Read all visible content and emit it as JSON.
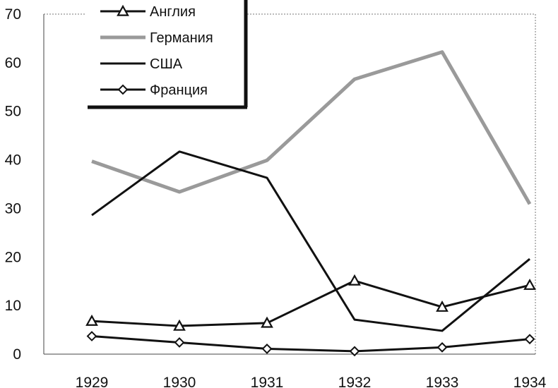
{
  "chart_data": {
    "type": "line",
    "categories": [
      "1929",
      "1930",
      "1931",
      "1932",
      "1933",
      "1934"
    ],
    "ylim": [
      0,
      70
    ],
    "yticks": [
      "0",
      "10",
      "20",
      "30",
      "40",
      "50",
      "60",
      "70"
    ],
    "grid": false,
    "legend_position": "top-left",
    "series": [
      {
        "name": "Англия",
        "values": [
          6.8,
          5.8,
          6.4,
          15.1,
          9.7,
          14.2
        ],
        "color": "#111111",
        "marker": "triangle"
      },
      {
        "name": "Германия",
        "values": [
          39.7,
          33.4,
          39.9,
          56.6,
          62.2,
          30.9
        ],
        "color": "#9a9a9a",
        "marker": "none"
      },
      {
        "name": "США",
        "values": [
          28.6,
          41.7,
          36.3,
          7.1,
          4.8,
          19.6
        ],
        "color": "#111111",
        "marker": "none"
      },
      {
        "name": "Франция",
        "values": [
          3.7,
          2.4,
          1.1,
          0.6,
          1.4,
          3.1
        ],
        "color": "#111111",
        "marker": "diamond"
      }
    ]
  }
}
